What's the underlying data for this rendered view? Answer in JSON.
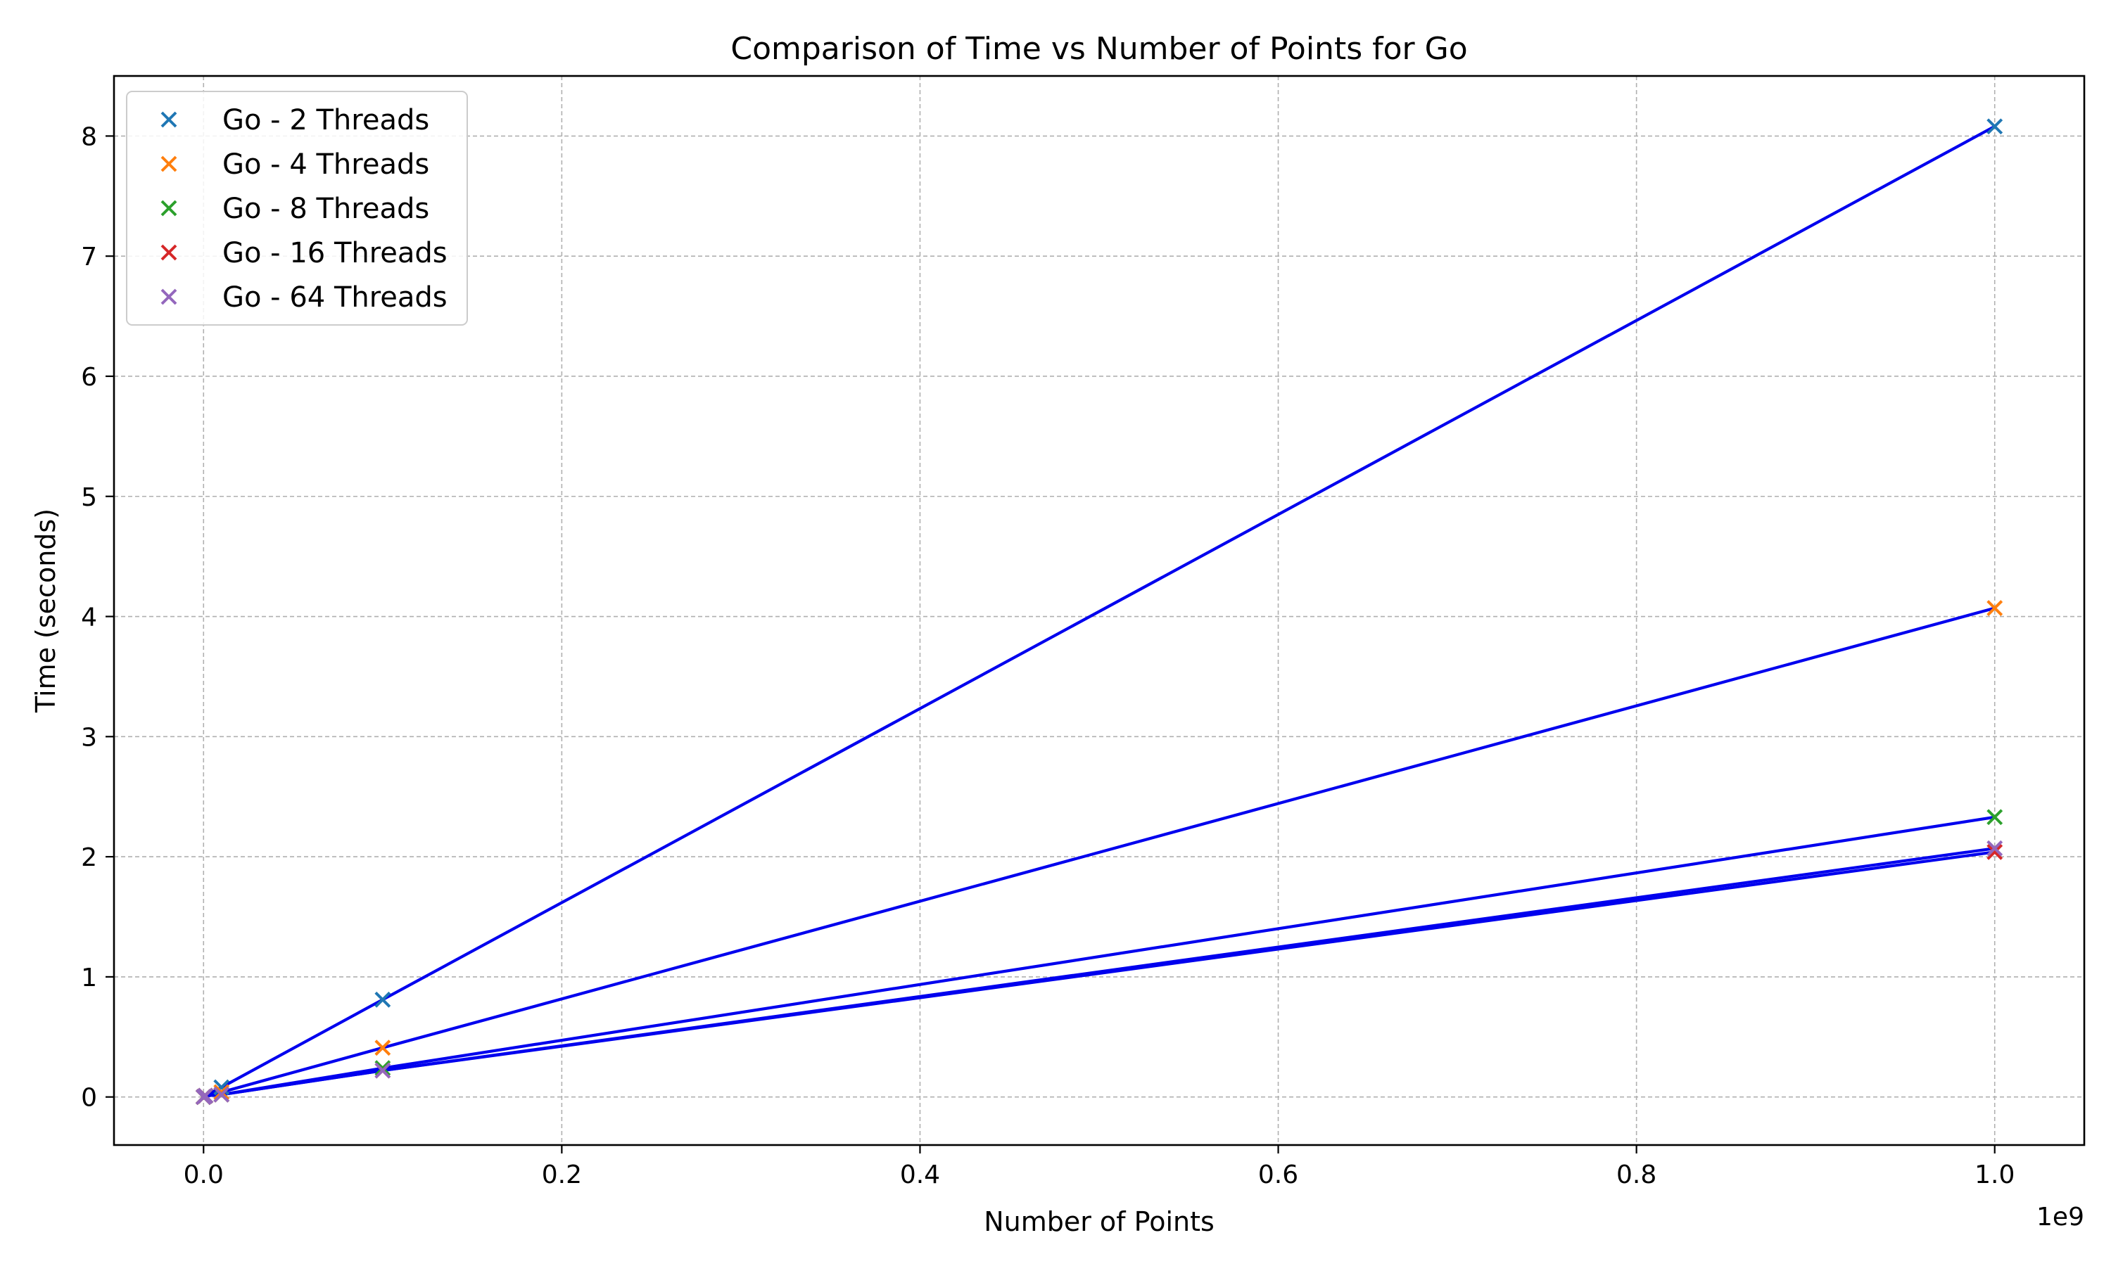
{
  "chart_data": {
    "type": "scatter",
    "title": "Comparison of Time vs Number of Points for Go",
    "xlabel": "Number of Points",
    "ylabel": "Time (seconds)",
    "x_scale_label": "1e9",
    "xlim": [
      -50000000,
      1050000000
    ],
    "ylim": [
      -0.4,
      8.5
    ],
    "x_ticks": [
      0,
      200000000,
      400000000,
      600000000,
      800000000,
      1000000000
    ],
    "x_tick_labels": [
      "0.0",
      "0.2",
      "0.4",
      "0.6",
      "0.8",
      "1.0"
    ],
    "y_ticks": [
      0,
      1,
      2,
      3,
      4,
      5,
      6,
      7,
      8
    ],
    "y_tick_labels": [
      "0",
      "1",
      "2",
      "3",
      "4",
      "5",
      "6",
      "7",
      "8"
    ],
    "grid": true,
    "legend_position": "top-left",
    "fit_line_color": "#0000ee",
    "series": [
      {
        "name": "Go - 2 Threads",
        "color": "#1f77b4",
        "marker": "x",
        "x": [
          1000,
          1000000,
          10000000,
          100000000,
          1000000000
        ],
        "y": [
          0.0,
          0.01,
          0.08,
          0.81,
          8.08
        ]
      },
      {
        "name": "Go - 4 Threads",
        "color": "#ff7f0e",
        "marker": "x",
        "x": [
          1000,
          1000000,
          10000000,
          100000000,
          1000000000
        ],
        "y": [
          0.0,
          0.01,
          0.04,
          0.41,
          4.07
        ]
      },
      {
        "name": "Go - 8 Threads",
        "color": "#2ca02c",
        "marker": "x",
        "x": [
          1000,
          1000000,
          10000000,
          100000000,
          1000000000
        ],
        "y": [
          0.0,
          0.01,
          0.02,
          0.24,
          2.33
        ]
      },
      {
        "name": "Go - 16 Threads",
        "color": "#d62728",
        "marker": "x",
        "x": [
          1000,
          1000000,
          10000000,
          100000000,
          1000000000
        ],
        "y": [
          0.0,
          0.01,
          0.02,
          0.22,
          2.04
        ]
      },
      {
        "name": "Go - 64 Threads",
        "color": "#9467bd",
        "marker": "x",
        "x": [
          1000,
          1000000,
          10000000,
          100000000,
          1000000000
        ],
        "y": [
          0.0,
          0.01,
          0.02,
          0.22,
          2.07
        ]
      }
    ]
  }
}
